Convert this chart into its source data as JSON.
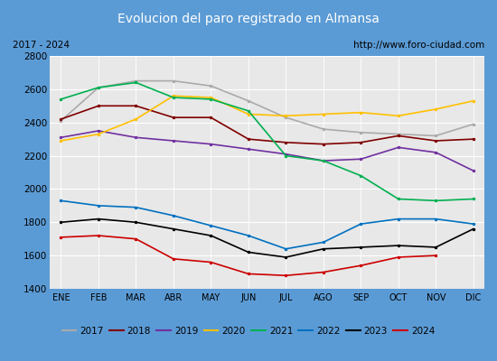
{
  "title": "Evolucion del paro registrado en Almansa",
  "subtitle_left": "2017 - 2024",
  "subtitle_right": "http://www.foro-ciudad.com",
  "months": [
    "ENE",
    "FEB",
    "MAR",
    "ABR",
    "MAY",
    "JUN",
    "JUL",
    "AGO",
    "SEP",
    "OCT",
    "NOV",
    "DIC"
  ],
  "ylim": [
    1400,
    2800
  ],
  "yticks": [
    1400,
    1600,
    1800,
    2000,
    2200,
    2400,
    2600,
    2800
  ],
  "series": {
    "2017": {
      "color": "#aaaaaa",
      "data": [
        2410,
        2610,
        2650,
        2650,
        2620,
        2530,
        2430,
        2360,
        2340,
        2330,
        2320,
        2390
      ]
    },
    "2018": {
      "color": "#800000",
      "data": [
        2420,
        2500,
        2500,
        2430,
        2430,
        2300,
        2280,
        2270,
        2280,
        2320,
        2290,
        2300
      ]
    },
    "2019": {
      "color": "#7030a0",
      "data": [
        2310,
        2350,
        2310,
        2290,
        2270,
        2240,
        2210,
        2170,
        2180,
        2250,
        2220,
        2110
      ]
    },
    "2020": {
      "color": "#ffc000",
      "data": [
        2290,
        2330,
        2420,
        2560,
        2550,
        2450,
        2440,
        2450,
        2460,
        2440,
        2480,
        2530
      ]
    },
    "2021": {
      "color": "#00b050",
      "data": [
        2540,
        2610,
        2640,
        2550,
        2540,
        2470,
        2200,
        2170,
        2080,
        1940,
        1930,
        1940
      ]
    },
    "2022": {
      "color": "#0070c0",
      "data": [
        1930,
        1900,
        1890,
        1840,
        1780,
        1720,
        1640,
        1680,
        1790,
        1820,
        1820,
        1790
      ]
    },
    "2023": {
      "color": "#000000",
      "data": [
        1800,
        1820,
        1800,
        1760,
        1720,
        1620,
        1590,
        1640,
        1650,
        1660,
        1650,
        1760
      ]
    },
    "2024": {
      "color": "#cc0000",
      "data": [
        1710,
        1720,
        1700,
        1580,
        1560,
        1490,
        1480,
        1500,
        1540,
        1590,
        1600,
        null
      ]
    }
  }
}
